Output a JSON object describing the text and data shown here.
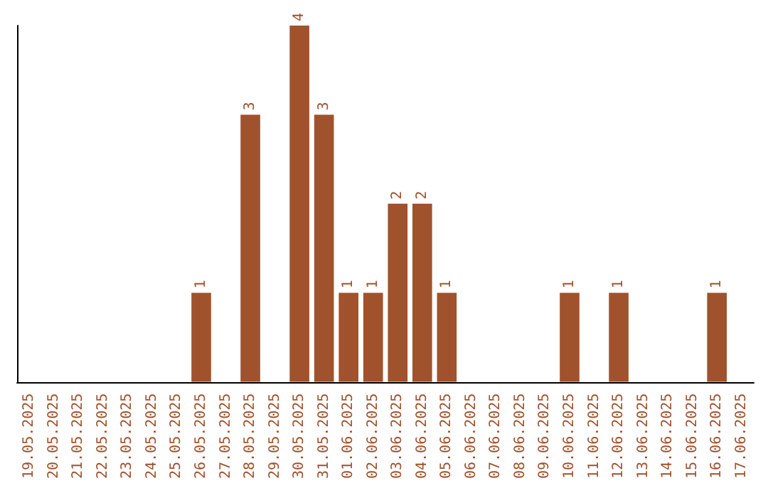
{
  "chart_data": {
    "type": "bar",
    "categories": [
      "19.05.2025",
      "20.05.2025",
      "21.05.2025",
      "22.05.2025",
      "23.05.2025",
      "24.05.2025",
      "25.05.2025",
      "26.05.2025",
      "27.05.2025",
      "28.05.2025",
      "29.05.2025",
      "30.05.2025",
      "31.05.2025",
      "01.06.2025",
      "02.06.2025",
      "03.06.2025",
      "04.06.2025",
      "05.06.2025",
      "06.06.2025",
      "07.06.2025",
      "08.06.2025",
      "09.06.2025",
      "10.06.2025",
      "11.06.2025",
      "12.06.2025",
      "13.06.2025",
      "14.06.2025",
      "15.06.2025",
      "16.06.2025",
      "17.06.2025"
    ],
    "values": [
      0,
      0,
      0,
      0,
      0,
      0,
      0,
      1,
      0,
      3,
      0,
      4,
      3,
      1,
      1,
      2,
      2,
      1,
      0,
      0,
      0,
      0,
      1,
      0,
      1,
      0,
      0,
      0,
      1,
      0
    ],
    "value_labels": [
      null,
      null,
      null,
      null,
      null,
      null,
      null,
      "1",
      null,
      "3",
      null,
      "4",
      "3",
      "1",
      "1",
      "2",
      "2",
      "1",
      null,
      null,
      null,
      null,
      "1",
      null,
      "1",
      null,
      null,
      null,
      "1",
      null
    ],
    "color": "#a0522d",
    "tick_labels": "x"
  }
}
